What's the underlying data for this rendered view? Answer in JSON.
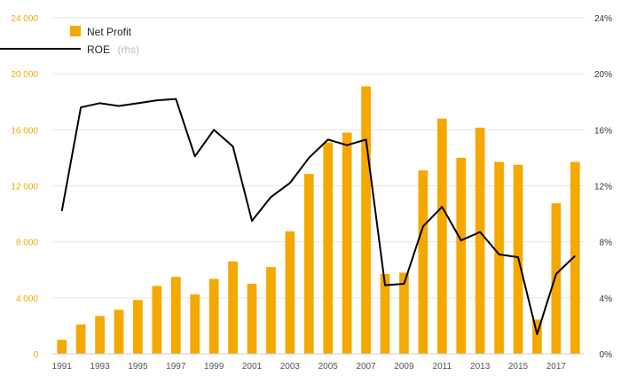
{
  "chart_data": {
    "type": "bar",
    "x": [
      1991,
      1992,
      1993,
      1994,
      1995,
      1996,
      1997,
      1998,
      1999,
      2000,
      2001,
      2002,
      2003,
      2004,
      2005,
      2006,
      2007,
      2008,
      2009,
      2010,
      2011,
      2012,
      2013,
      2014,
      2015,
      2016,
      2017,
      2018
    ],
    "x_tick_labels": [
      "1991",
      "1993",
      "1995",
      "1997",
      "1999",
      "2001",
      "2003",
      "2005",
      "2007",
      "2009",
      "2011",
      "2013",
      "2015",
      "2017"
    ],
    "series": [
      {
        "name": "Net Profit",
        "axis": "left",
        "type": "bar",
        "color": "#f5a800",
        "values": [
          1000,
          2100,
          2700,
          3150,
          3850,
          4850,
          5500,
          4250,
          5350,
          6600,
          5000,
          6200,
          8750,
          12850,
          15100,
          15800,
          19100,
          5700,
          5800,
          13100,
          16800,
          14000,
          16150,
          13700,
          13500,
          2450,
          10750,
          13700
        ]
      },
      {
        "name": "ROE",
        "name_suffix": "(rhs)",
        "axis": "right",
        "type": "line",
        "color": "#000000",
        "values": [
          10.2,
          17.6,
          17.9,
          17.7,
          17.9,
          18.1,
          18.2,
          14.1,
          16.0,
          14.8,
          9.5,
          11.2,
          12.2,
          14.0,
          15.3,
          14.9,
          15.3,
          4.9,
          5.0,
          9.1,
          10.5,
          8.1,
          8.7,
          7.1,
          6.9,
          1.4,
          5.7,
          7.0
        ]
      }
    ],
    "y_left": {
      "ylim": [
        0,
        24000
      ],
      "ticks": [
        0,
        4000,
        8000,
        12000,
        16000,
        20000,
        24000
      ],
      "tick_labels": [
        "0",
        "4 000",
        "8 000",
        "12 000",
        "16 000",
        "20 000",
        "24 000"
      ],
      "color": "#f5a800"
    },
    "y_right": {
      "ylim": [
        0,
        24
      ],
      "ticks": [
        0,
        4,
        8,
        12,
        16,
        20,
        24
      ],
      "tick_labels": [
        "0%",
        "4%",
        "8%",
        "12%",
        "16%",
        "20%",
        "24%"
      ]
    },
    "legend": {
      "placement": "top-left",
      "items": [
        {
          "label": "Net Profit",
          "suffix": "",
          "marker": "square",
          "color": "#f5a800"
        },
        {
          "label": "ROE",
          "suffix": "(rhs)",
          "marker": "line",
          "color": "#000000"
        }
      ]
    },
    "grid": true,
    "grid_color": "#e6e6e6",
    "title": "",
    "xlabel": "",
    "ylabel": ""
  }
}
